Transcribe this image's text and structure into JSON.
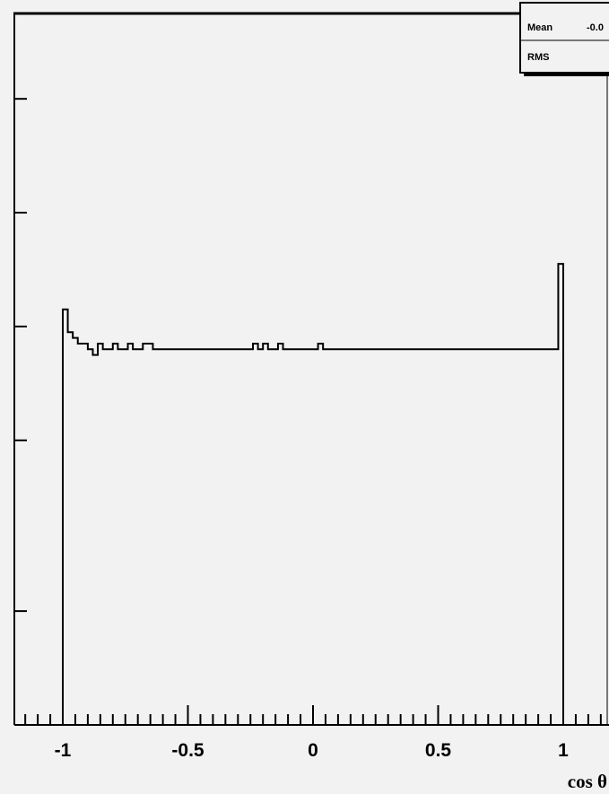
{
  "chart_data": {
    "type": "line",
    "style": "step-histogram",
    "xlabel": "cos θ",
    "xlim": [
      -1.2,
      1.2
    ],
    "ylim": [
      0,
      1.25
    ],
    "x_tick_labels": [
      "-1",
      "-0.5",
      "0",
      "0.5",
      "1"
    ],
    "x_ticks": [
      -1,
      -0.5,
      0,
      0.5,
      1
    ],
    "y_ticks": [
      0.2,
      0.5,
      0.7,
      0.9,
      1.1
    ],
    "stats_box": {
      "entries": [
        {
          "label": "Mean",
          "value": "-0.0"
        },
        {
          "label": "RMS",
          "value": ""
        }
      ]
    },
    "bin_edges_start": -1.0,
    "bin_width": 0.02,
    "values": [
      0.73,
      0.69,
      0.68,
      0.67,
      0.67,
      0.66,
      0.65,
      0.67,
      0.66,
      0.66,
      0.67,
      0.66,
      0.66,
      0.67,
      0.66,
      0.66,
      0.67,
      0.67,
      0.66,
      0.66,
      0.66,
      0.66,
      0.66,
      0.66,
      0.66,
      0.66,
      0.66,
      0.66,
      0.66,
      0.66,
      0.66,
      0.66,
      0.66,
      0.66,
      0.66,
      0.66,
      0.66,
      0.66,
      0.67,
      0.66,
      0.67,
      0.66,
      0.66,
      0.67,
      0.66,
      0.66,
      0.66,
      0.66,
      0.66,
      0.66,
      0.66,
      0.67,
      0.66,
      0.66,
      0.66,
      0.66,
      0.66,
      0.66,
      0.66,
      0.66,
      0.66,
      0.66,
      0.66,
      0.66,
      0.66,
      0.66,
      0.66,
      0.66,
      0.66,
      0.66,
      0.66,
      0.66,
      0.66,
      0.66,
      0.66,
      0.66,
      0.66,
      0.66,
      0.66,
      0.66,
      0.66,
      0.66,
      0.66,
      0.66,
      0.66,
      0.66,
      0.66,
      0.66,
      0.66,
      0.66,
      0.66,
      0.66,
      0.66,
      0.66,
      0.66,
      0.66,
      0.66,
      0.66,
      0.66,
      0.81
    ],
    "colors": {
      "line": "#000000",
      "background": "#f2f2f2"
    }
  }
}
